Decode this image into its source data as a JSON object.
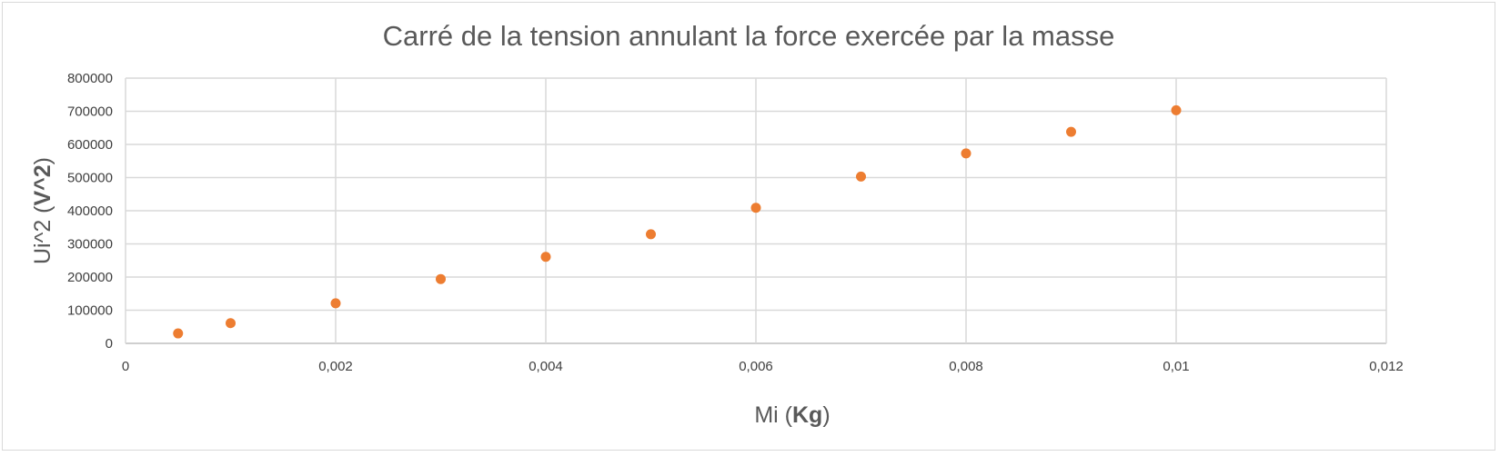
{
  "chart_data": {
    "type": "scatter",
    "title": "Carré de la tension annulant la force exercée par la masse",
    "xlabel": {
      "plain": "Mi ",
      "bold": "Kg",
      "open": "(",
      "close": ")"
    },
    "ylabel": {
      "plain": "Ui^2 ",
      "bold": "V^2",
      "open": "(",
      "close": ")"
    },
    "xlim": [
      0,
      0.012
    ],
    "ylim": [
      0,
      800000
    ],
    "grid": true,
    "legend": "none",
    "x_ticks": [
      {
        "value": 0,
        "label": "0"
      },
      {
        "value": 0.002,
        "label": "0,002"
      },
      {
        "value": 0.004,
        "label": "0,004"
      },
      {
        "value": 0.006,
        "label": "0,006"
      },
      {
        "value": 0.008,
        "label": "0,008"
      },
      {
        "value": 0.01,
        "label": "0,01"
      },
      {
        "value": 0.012,
        "label": "0,012"
      }
    ],
    "y_ticks": [
      {
        "value": 0,
        "label": "0"
      },
      {
        "value": 100000,
        "label": "100000"
      },
      {
        "value": 200000,
        "label": "200000"
      },
      {
        "value": 300000,
        "label": "300000"
      },
      {
        "value": 400000,
        "label": "400000"
      },
      {
        "value": 500000,
        "label": "500000"
      },
      {
        "value": 600000,
        "label": "600000"
      },
      {
        "value": 700000,
        "label": "700000"
      },
      {
        "value": 800000,
        "label": "800000"
      }
    ],
    "series": [
      {
        "color": "#ed7d31",
        "points": [
          {
            "x": 0.0005,
            "y": 30000
          },
          {
            "x": 0.001,
            "y": 61000
          },
          {
            "x": 0.002,
            "y": 121000
          },
          {
            "x": 0.003,
            "y": 194000
          },
          {
            "x": 0.004,
            "y": 261000
          },
          {
            "x": 0.005,
            "y": 329000
          },
          {
            "x": 0.006,
            "y": 409000
          },
          {
            "x": 0.007,
            "y": 503000
          },
          {
            "x": 0.008,
            "y": 573000
          },
          {
            "x": 0.009,
            "y": 638000
          },
          {
            "x": 0.01,
            "y": 703000
          }
        ]
      }
    ],
    "colors": {
      "grid": "#d9d9d9",
      "axis": "#bfbfbf"
    }
  }
}
